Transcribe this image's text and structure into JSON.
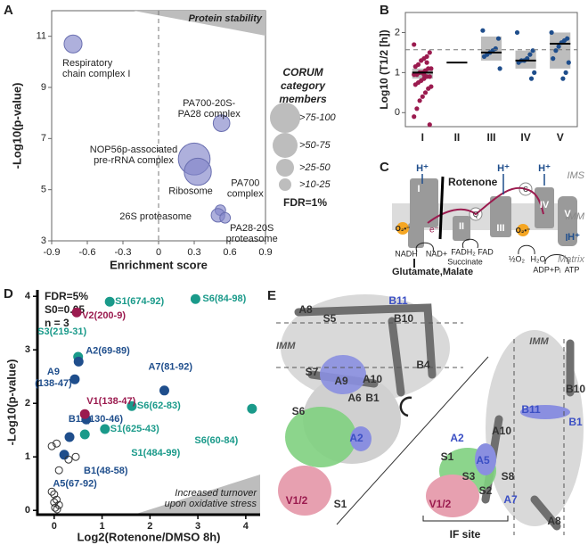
{
  "chart_data": [
    {
      "type": "bubble",
      "panel": "A",
      "xlabel": "Enrichment score",
      "ylabel": "-Log10(p-value)",
      "xlim": [
        -0.9,
        0.9
      ],
      "xticks": [
        -0.9,
        -0.6,
        -0.3,
        0,
        0.3,
        0.6,
        0.9
      ],
      "ylim": [
        3,
        12
      ],
      "yticks": [
        3,
        5,
        7,
        9,
        11
      ],
      "color": "#8386c9",
      "labels": [
        [
          "Respiratory",
          "chain complex I"
        ],
        [
          "PA700-20S-",
          "PA28 complex"
        ],
        [
          "NOP56p-associated",
          "pre-rRNA complex"
        ],
        [
          "Ribosome"
        ],
        [
          "PA700",
          "complex"
        ],
        [
          "26S proteasome"
        ],
        [
          "PA28-20S",
          "proteasome"
        ]
      ],
      "x": [
        -0.72,
        0.53,
        0.3,
        0.33,
        0.52,
        0.5,
        0.56
      ],
      "values": [
        10.7,
        7.6,
        6.2,
        5.7,
        4.2,
        4.0,
        3.9
      ],
      "sizes": [
        35,
        30,
        110,
        80,
        12,
        20,
        12
      ],
      "annotation": "Protein stability",
      "legend_title": [
        "CORUM",
        "category",
        "members"
      ],
      "legend_labels": [
        ">75-100",
        ">50-75",
        ">25-50",
        ">10-25"
      ],
      "note": "FDR=1%"
    },
    {
      "type": "box",
      "panel": "B",
      "ylabel": "Log10 (T1/2 [h])",
      "categories": [
        "I",
        "II",
        "III",
        "IV",
        "V"
      ],
      "ylim": [
        -0.35,
        2.5
      ],
      "yticks": [
        0,
        1,
        2
      ],
      "reference_line": 1.57,
      "box_color": "#bdbdbd",
      "q1": [
        0.85,
        null,
        1.3,
        1.1,
        1.1
      ],
      "median": [
        1.0,
        1.25,
        1.5,
        1.3,
        1.72
      ],
      "q3": [
        1.1,
        null,
        1.9,
        1.55,
        2.0
      ],
      "points": [
        [
          1.7,
          1.5,
          1.4,
          1.35,
          1.3,
          1.2,
          1.15,
          1.1,
          1.1,
          1.05,
          1.0,
          1.0,
          0.95,
          0.95,
          0.9,
          0.9,
          0.85,
          0.8,
          0.75,
          0.7,
          0.65,
          0.6,
          0.5,
          0.4,
          0.3,
          0.1,
          -0.1,
          -0.3,
          1.25,
          0.95
        ],
        [],
        [
          2.05,
          1.85,
          1.6,
          1.55,
          1.5,
          1.45,
          1.4,
          1.1
        ],
        [
          2.0,
          1.55,
          1.45,
          1.35,
          1.3,
          1.3,
          1.25,
          1.0,
          0.85
        ],
        [
          2.0,
          1.85,
          1.8,
          1.75,
          1.65,
          1.55,
          1.35,
          1.25,
          1.0,
          0.85
        ]
      ],
      "point_colors": [
        "#9b1b4f",
        "#1f4e8c",
        "#1f4e8c",
        "#1f4e8c",
        "#1f4e8c"
      ]
    },
    {
      "type": "scatter",
      "panel": "D",
      "xlabel": "Log2(Rotenone/DMSO 8h)",
      "ylabel": "-Log10(p-value)",
      "xlim": [
        -0.35,
        4.3
      ],
      "xticks": [
        0,
        1,
        2,
        3,
        4
      ],
      "ylim": [
        -0.08,
        4.12
      ],
      "yticks": [
        0,
        1,
        2,
        3,
        4
      ],
      "annotations": [
        "FDR=5%",
        "S0=0.05",
        "n = 3"
      ],
      "corner_text": [
        "Increased turnover",
        "upon oxidative stress"
      ],
      "series": [
        {
          "color": "#1a9a8a",
          "x": [
            1.16,
            2.95,
            0.5,
            1.62,
            4.13,
            1.06,
            0.64
          ],
          "values": [
            3.9,
            3.95,
            2.87,
            1.95,
            1.9,
            1.52,
            1.42
          ],
          "labels": [
            [
              "S1(674-92)"
            ],
            [
              "S6(84-98)"
            ],
            [
              "S3(219-31)"
            ],
            [
              "S6(62-83)"
            ],
            [
              "S6(60-84)"
            ],
            [
              "S1(625-43)"
            ],
            [
              "S1(484-99)"
            ]
          ]
        },
        {
          "color": "#1f4e8c",
          "x": [
            0.51,
            0.43,
            2.3,
            0.67,
            0.32,
            0.21
          ],
          "values": [
            2.78,
            2.45,
            2.24,
            1.7,
            1.37,
            1.04
          ],
          "labels": [
            [
              "A2(69-89)"
            ],
            [
              "A9",
              "(138-47)"
            ],
            [
              "A7(81-92)"
            ],
            [
              "B11(130-46)"
            ],
            [
              "B1(48-58)"
            ],
            [
              "A5(67-92)"
            ]
          ]
        },
        {
          "color": "#9b1b4f",
          "x": [
            0.47,
            0.64
          ],
          "values": [
            3.7,
            1.8
          ],
          "labels": [
            [
              "V2(200-9)"
            ],
            [
              "V1(138-47)"
            ]
          ]
        },
        {
          "color": "none",
          "x": [
            0.05,
            -0.05,
            0.45,
            0.3,
            0.1,
            -0.05,
            0.0,
            0.05,
            0.0,
            0.1,
            0.02,
            0.06
          ],
          "values": [
            1.25,
            1.2,
            1.0,
            0.95,
            0.75,
            0.35,
            0.3,
            0.2,
            0.15,
            0.1,
            0.05,
            0.02
          ]
        }
      ]
    }
  ],
  "panel_c": {
    "label": "C",
    "h1": "H⁺",
    "h2": "H⁺",
    "h3": "H⁺",
    "h4": "H⁺",
    "rotenone": "Rotenone",
    "ims": "IMS",
    "imm": "IMM",
    "matrix": "Matrix",
    "c1": "I",
    "c2": "II",
    "c3": "III",
    "c4": "IV",
    "c5": "V",
    "q": "Q",
    "cyt": "C",
    "o2a": "O₂•⁻",
    "o2b": "O₂•⁻",
    "e": "e⁻",
    "nadh": "NADH",
    "nad": "NAD+",
    "fadh2": "FADH₂",
    "fad": "FAD",
    "succinate": "Succinate",
    "halfo2": "½O₂",
    "h2o": "H₂O",
    "adp": "ADP+Pᵢ",
    "atp": "ATP",
    "substrates": "Glutamate,Malate"
  },
  "panel_e": {
    "label": "E",
    "imm_left": "IMM",
    "imm_right": "IMM",
    "if_site": "IF site",
    "labels_left": [
      "A8",
      "S5",
      "B10",
      "B11",
      "B4",
      "S7",
      "A9",
      "A10",
      "A6",
      "B1",
      "S6",
      "A2",
      "V1/2",
      "S1"
    ],
    "labels_right": [
      "B10",
      "B11",
      "B1",
      "A10",
      "A2",
      "S1",
      "A5",
      "S3",
      "S8",
      "S2",
      "A7",
      "V1/2",
      "A8"
    ]
  }
}
